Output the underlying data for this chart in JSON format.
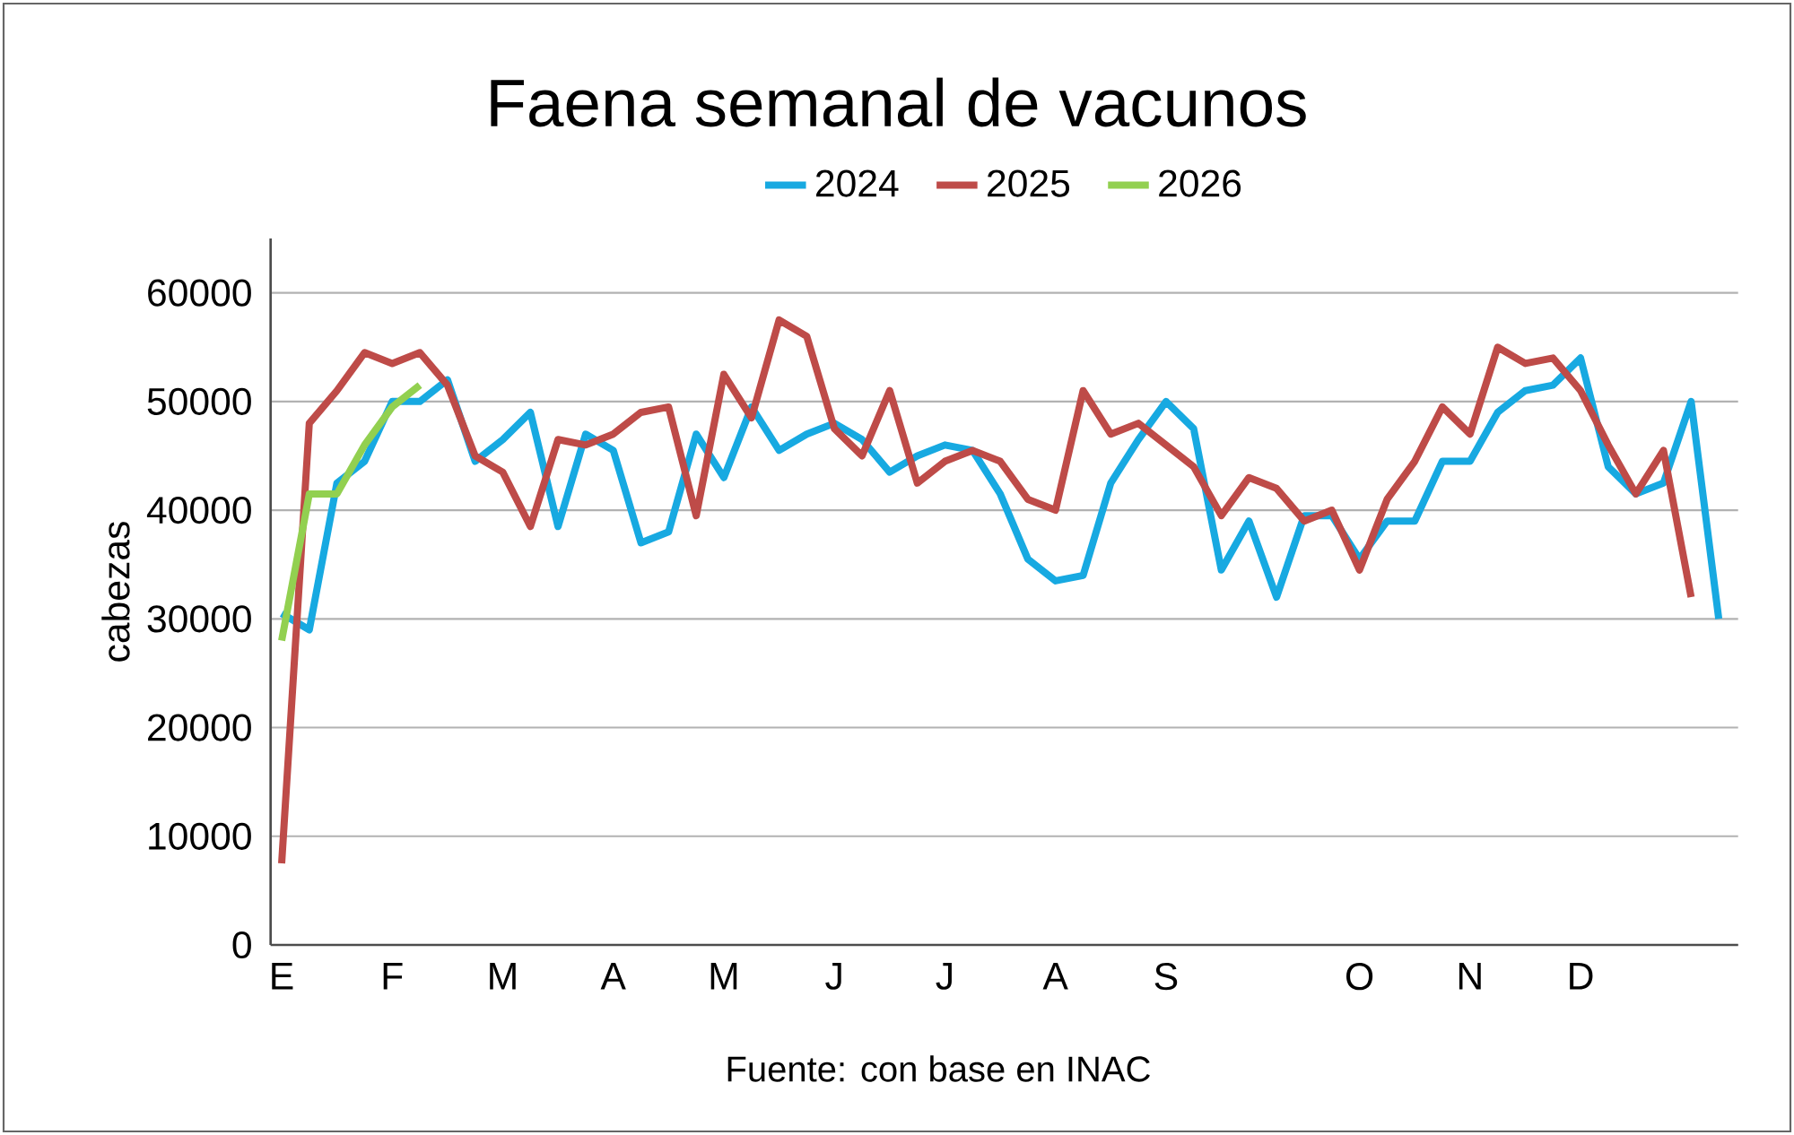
{
  "chart_data": {
    "type": "line",
    "title": "Faena semanal de vacunos",
    "ylabel": "cabezas",
    "categories": [
      "E",
      null,
      null,
      null,
      "F",
      null,
      null,
      null,
      "M",
      null,
      null,
      null,
      "A",
      null,
      null,
      null,
      "M",
      null,
      null,
      null,
      "J",
      null,
      null,
      null,
      "J",
      null,
      null,
      null,
      "A",
      null,
      null,
      null,
      "S",
      null,
      null,
      null,
      null,
      null,
      null,
      "O",
      null,
      null,
      null,
      "N",
      null,
      null,
      null,
      "D",
      null,
      null,
      null,
      null,
      null
    ],
    "series": [
      {
        "name": "2024",
        "color": "#17a9e1",
        "values": [
          30500,
          29000,
          42500,
          44500,
          50000,
          50000,
          52000,
          44500,
          46500,
          49000,
          38500,
          47000,
          45500,
          37000,
          38000,
          47000,
          43000,
          49500,
          45500,
          47000,
          48000,
          46500,
          43500,
          45000,
          46000,
          45500,
          41500,
          35500,
          33500,
          34000,
          42500,
          46500,
          50000,
          47500,
          34500,
          39000,
          32000,
          39500,
          39500,
          35500,
          39000,
          39000,
          44500,
          44500,
          49000,
          51000,
          51500,
          54000,
          44000,
          41500,
          42500,
          50000,
          30000
        ]
      },
      {
        "name": "2025",
        "color": "#be4b48",
        "values": [
          7500,
          48000,
          51000,
          54500,
          53500,
          54500,
          51500,
          45000,
          43500,
          38500,
          46500,
          46000,
          47000,
          49000,
          49500,
          39500,
          52500,
          48500,
          57500,
          56000,
          47500,
          45000,
          51000,
          42500,
          44500,
          45500,
          44500,
          41000,
          40000,
          51000,
          47000,
          48000,
          46000,
          44000,
          39500,
          43000,
          42000,
          39000,
          40000,
          34500,
          41000,
          44500,
          49500,
          47000,
          55000,
          53500,
          54000,
          51000,
          46000,
          41500,
          45500,
          32000,
          null
        ]
      },
      {
        "name": "2026",
        "color": "#92d050",
        "values": [
          28000,
          41500,
          41500,
          46000,
          49500,
          51500,
          null,
          null,
          null,
          null,
          null,
          null,
          null,
          null,
          null,
          null,
          null,
          null,
          null,
          null,
          null,
          null,
          null,
          null,
          null,
          null,
          null,
          null,
          null,
          null,
          null,
          null,
          null,
          null,
          null,
          null,
          null,
          null,
          null,
          null,
          null,
          null,
          null,
          null,
          null,
          null,
          null,
          null,
          null,
          null,
          null,
          null,
          null
        ]
      }
    ],
    "ylim": [
      0,
      65000
    ],
    "yticks": [
      0,
      10000,
      20000,
      30000,
      40000,
      50000,
      60000
    ],
    "grid": "y",
    "legend": "top",
    "line_style": "solid",
    "annotations": [
      "Fuente: con base en INAC"
    ]
  }
}
